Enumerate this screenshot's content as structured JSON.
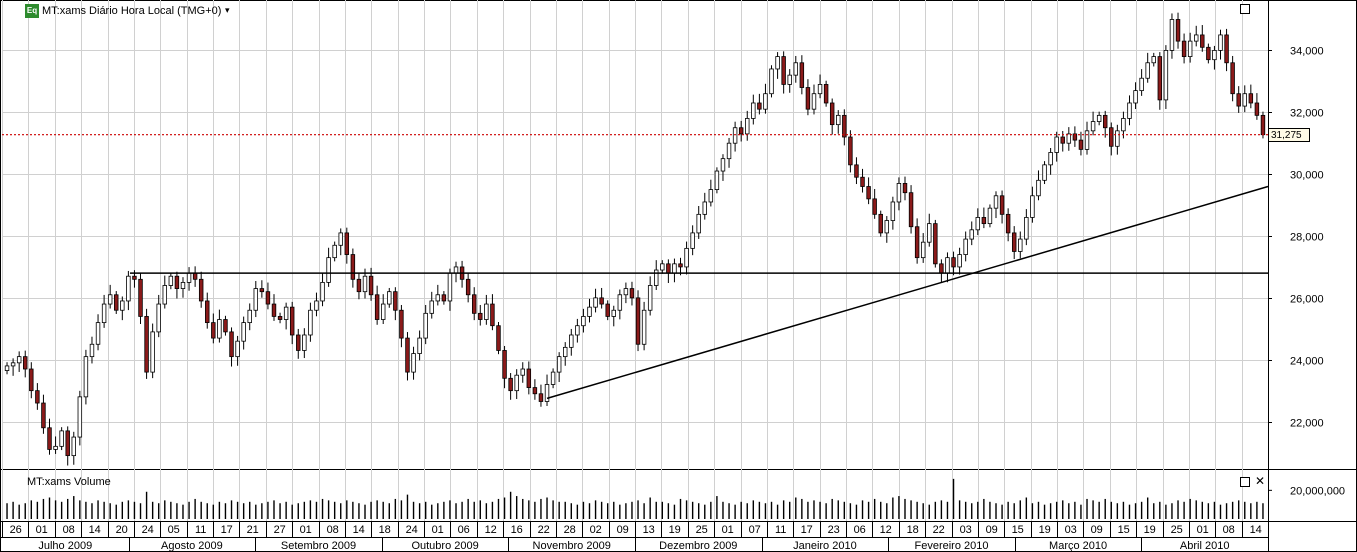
{
  "header": {
    "badge": "Eq",
    "title": "MT:xams Diário Hora Local (TMG+0)",
    "dropdown_icon": "triangle-down-icon"
  },
  "volume_header": {
    "title": "MT:xams Volume"
  },
  "price_marker": {
    "label": "31,275",
    "value": 31275,
    "color": "#cc0000"
  },
  "colors": {
    "up": "#ffffff",
    "down": "#8b1a1a",
    "grid": "#d0d0d0",
    "line": "#000000"
  },
  "chart_data": {
    "type": "candlestick",
    "ylim": [
      20500,
      35500
    ],
    "y_ticks": [
      {
        "value": 22000,
        "label": "22,000"
      },
      {
        "value": 24000,
        "label": "24,000"
      },
      {
        "value": 26000,
        "label": "26,000"
      },
      {
        "value": 28000,
        "label": "28,000"
      },
      {
        "value": 30000,
        "label": "30,000"
      },
      {
        "value": 32000,
        "label": "32,000"
      },
      {
        "value": 34000,
        "label": "34,000"
      }
    ],
    "volume_tick": {
      "value": 20000000,
      "label": "20,000,000"
    },
    "day_labels": [
      "26",
      "01",
      "08",
      "14",
      "20",
      "24",
      "05",
      "11",
      "17",
      "21",
      "27",
      "01",
      "08",
      "14",
      "18",
      "24",
      "01",
      "06",
      "12",
      "16",
      "22",
      "28",
      "02",
      "09",
      "13",
      "19",
      "25",
      "01",
      "07",
      "11",
      "17",
      "23",
      "06",
      "12",
      "18",
      "22",
      "03",
      "09",
      "15",
      "19",
      "03",
      "09",
      "15",
      "19",
      "25",
      "01",
      "08",
      "14"
    ],
    "month_labels": [
      "Julho 2009",
      "Agosto 2009",
      "Setembro 2009",
      "Outubro 2009",
      "Novembro 2009",
      "Dezembro 2009",
      "Janeiro 2010",
      "Fevereiro 2010",
      "Março 2010",
      "Abril 2010"
    ],
    "horizontal_line": {
      "value": 26800
    },
    "trendline": {
      "start_index": 89,
      "start_value": 22750,
      "end_index": 209,
      "end_value": 29600
    },
    "closes": [
      23800,
      23900,
      24100,
      23700,
      23000,
      22600,
      21800,
      21100,
      21200,
      21700,
      20900,
      21500,
      22800,
      24100,
      24500,
      25200,
      25800,
      26100,
      25600,
      25900,
      26700,
      26600,
      25400,
      23600,
      24900,
      25800,
      26400,
      26700,
      26300,
      26500,
      26800,
      26600,
      25900,
      25200,
      24700,
      25300,
      24900,
      24100,
      24600,
      25200,
      25600,
      26300,
      26200,
      25800,
      25400,
      25300,
      25700,
      24800,
      24300,
      24800,
      25600,
      25900,
      26500,
      27300,
      27700,
      28100,
      27400,
      26600,
      26200,
      26700,
      26100,
      25300,
      25800,
      26200,
      25600,
      24700,
      23600,
      24200,
      24700,
      25500,
      25900,
      26100,
      25900,
      26800,
      27000,
      26600,
      26100,
      25500,
      25300,
      25800,
      25100,
      24300,
      23400,
      23000,
      23500,
      23700,
      23100,
      22900,
      22650,
      23200,
      23600,
      24100,
      24400,
      24800,
      25100,
      25400,
      25700,
      26000,
      25800,
      25400,
      25600,
      26100,
      26300,
      26000,
      24500,
      25600,
      26400,
      26900,
      27100,
      26800,
      27100,
      27000,
      27600,
      28100,
      28700,
      29100,
      29500,
      30100,
      30500,
      31000,
      31500,
      31300,
      31800,
      32300,
      32100,
      32600,
      33400,
      33800,
      32900,
      33200,
      33600,
      32800,
      32100,
      32600,
      32900,
      32300,
      31600,
      31900,
      31200,
      30300,
      29900,
      29600,
      29200,
      28700,
      28100,
      28500,
      29100,
      29700,
      29400,
      28300,
      27300,
      27800,
      28400,
      27100,
      26800,
      27300,
      27000,
      27400,
      27900,
      28200,
      28600,
      28400,
      28900,
      29300,
      28700,
      28100,
      27500,
      27900,
      28600,
      29300,
      29800,
      30300,
      30700,
      31200,
      31000,
      31300,
      31100,
      30800,
      31400,
      31700,
      31900,
      31500,
      30900,
      31400,
      31800,
      32300,
      32700,
      33100,
      33600,
      33800,
      32400,
      34000,
      35000,
      34300,
      33800,
      34300,
      34500,
      34100,
      33700,
      34000,
      34500,
      33600,
      32600,
      32200,
      32600,
      32300,
      31900,
      31275
    ],
    "volumes": [
      11,
      12,
      10,
      11,
      13,
      12,
      14,
      15,
      13,
      12,
      14,
      16,
      13,
      12,
      11,
      13,
      12,
      11,
      10,
      12,
      13,
      12,
      11,
      19,
      12,
      11,
      13,
      12,
      11,
      10,
      12,
      14,
      12,
      11,
      10,
      12,
      11,
      13,
      12,
      11,
      12,
      10,
      11,
      12,
      13,
      11,
      12,
      10,
      11,
      12,
      13,
      12,
      14,
      13,
      12,
      11,
      13,
      12,
      11,
      10,
      12,
      13,
      12,
      11,
      14,
      13,
      17,
      12,
      11,
      12,
      10,
      11,
      12,
      13,
      11,
      12,
      14,
      12,
      13,
      11,
      12,
      14,
      15,
      19,
      16,
      14,
      13,
      12,
      14,
      15,
      13,
      12,
      12,
      11,
      10,
      12,
      11,
      13,
      12,
      11,
      12,
      10,
      11,
      12,
      13,
      11,
      15,
      12,
      12,
      11,
      10,
      14,
      13,
      12,
      11,
      10,
      12,
      16,
      12,
      11,
      10,
      12,
      11,
      13,
      12,
      11,
      12,
      10,
      13,
      12,
      15,
      14,
      12,
      13,
      12,
      11,
      14,
      13,
      12,
      11,
      10,
      13,
      12,
      14,
      12,
      11,
      15,
      16,
      14,
      13,
      12,
      11,
      10,
      12,
      13,
      12,
      28,
      13,
      12,
      11,
      12,
      14,
      12,
      11,
      10,
      12,
      11,
      13,
      15,
      11,
      12,
      10,
      11,
      12,
      13,
      11,
      12,
      10,
      14,
      13,
      12,
      14,
      12,
      11,
      12,
      10,
      11,
      12,
      15,
      11,
      12,
      10,
      11,
      13,
      12,
      14,
      13,
      12,
      11,
      12,
      10,
      11,
      12,
      13,
      12,
      11,
      12,
      11,
      10,
      12
    ]
  }
}
